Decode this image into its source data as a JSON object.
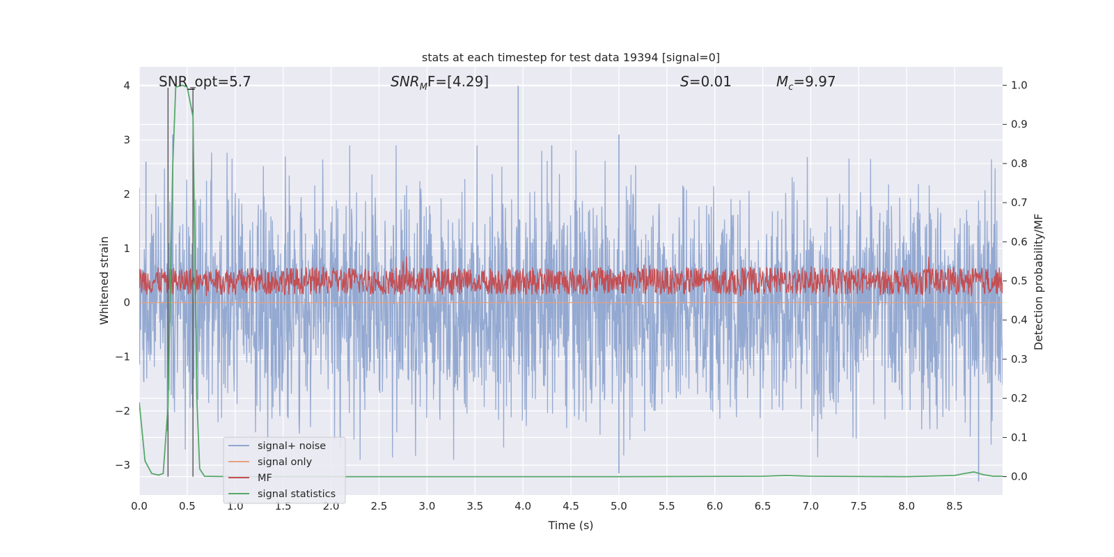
{
  "chart_data": {
    "type": "line",
    "title": "stats at each timestep for test data 19394 [signal=0]",
    "xlabel": "Time (s)",
    "ylabel": "Whitened strain",
    "ylabel_right": "Detection probability/MF",
    "xlim": [
      0.0,
      9.0
    ],
    "ylim": [
      -3.55,
      4.35
    ],
    "ylim_right": [
      -0.047,
      1.047
    ],
    "x_ticks": [
      "0.0",
      "0.5",
      "1.0",
      "1.5",
      "2.0",
      "2.5",
      "3.0",
      "3.5",
      "4.0",
      "4.5",
      "5.0",
      "5.5",
      "6.0",
      "6.5",
      "7.0",
      "7.5",
      "8.0",
      "8.5"
    ],
    "y_ticks": [
      "4",
      "3",
      "2",
      "1",
      "0",
      "−1",
      "−2",
      "−3"
    ],
    "y_right_ticks": [
      "1.0",
      "0.9",
      "0.8",
      "0.7",
      "0.6",
      "0.5",
      "0.4",
      "0.3",
      "0.2",
      "0.1",
      "0.0"
    ],
    "grid": true,
    "legend_position": "lower-left",
    "annotations": {
      "snr_opt": "SNR_opt=5.7",
      "snr_mf_main": "SNR",
      "snr_mf_sub": "M",
      "snr_mf_rest": "F=[4.29]",
      "s_main": "S",
      "s_rest": "=0.01",
      "mc_main": "M",
      "mc_sub": "c",
      "mc_rest": "=9.97"
    },
    "markers": [
      {
        "name": "vertical line",
        "x": 0.3
      },
      {
        "name": "vertical line",
        "x": 0.56
      }
    ],
    "series": [
      {
        "name": "signal+ noise",
        "color": "#8fa5cf",
        "axis": "left",
        "description": "noisy whitened strain, spanning about -2.9 to 4.0 with mean near 0",
        "peaks": [
          {
            "x": 0.07,
            "y": 2.6
          },
          {
            "x": 0.35,
            "y": 3.1
          },
          {
            "x": 3.95,
            "y": 4.0
          },
          {
            "x": 5.0,
            "y": 3.1
          },
          {
            "x": 4.3,
            "y": 2.9
          },
          {
            "x": 5.0,
            "y": -3.15
          },
          {
            "x": 8.75,
            "y": -3.3
          }
        ]
      },
      {
        "name": "signal only",
        "color": "#e8a07e",
        "axis": "left",
        "value": 0.0
      },
      {
        "name": "MF",
        "color": "#c44e52",
        "axis": "right",
        "description": "matched filter output, fluctuating between about 0.46 and 0.56"
      },
      {
        "name": "signal statistics",
        "color": "#55a868",
        "axis": "right",
        "x": [
          0.0,
          0.06,
          0.13,
          0.2,
          0.25,
          0.3,
          0.35,
          0.38,
          0.45,
          0.5,
          0.56,
          0.6,
          0.63,
          0.68,
          1.0,
          3.0,
          5.0,
          6.5,
          6.75,
          7.0,
          8.0,
          8.5,
          8.6,
          8.7,
          8.8,
          8.9,
          9.0
        ],
        "y": [
          0.19,
          0.04,
          0.008,
          0.004,
          0.008,
          0.18,
          0.8,
          0.995,
          1.0,
          0.995,
          0.92,
          0.2,
          0.02,
          0.001,
          0.0,
          0.0,
          0.0,
          0.001,
          0.003,
          0.001,
          0.0,
          0.003,
          0.008,
          0.012,
          0.005,
          0.001,
          0.001
        ]
      }
    ]
  }
}
